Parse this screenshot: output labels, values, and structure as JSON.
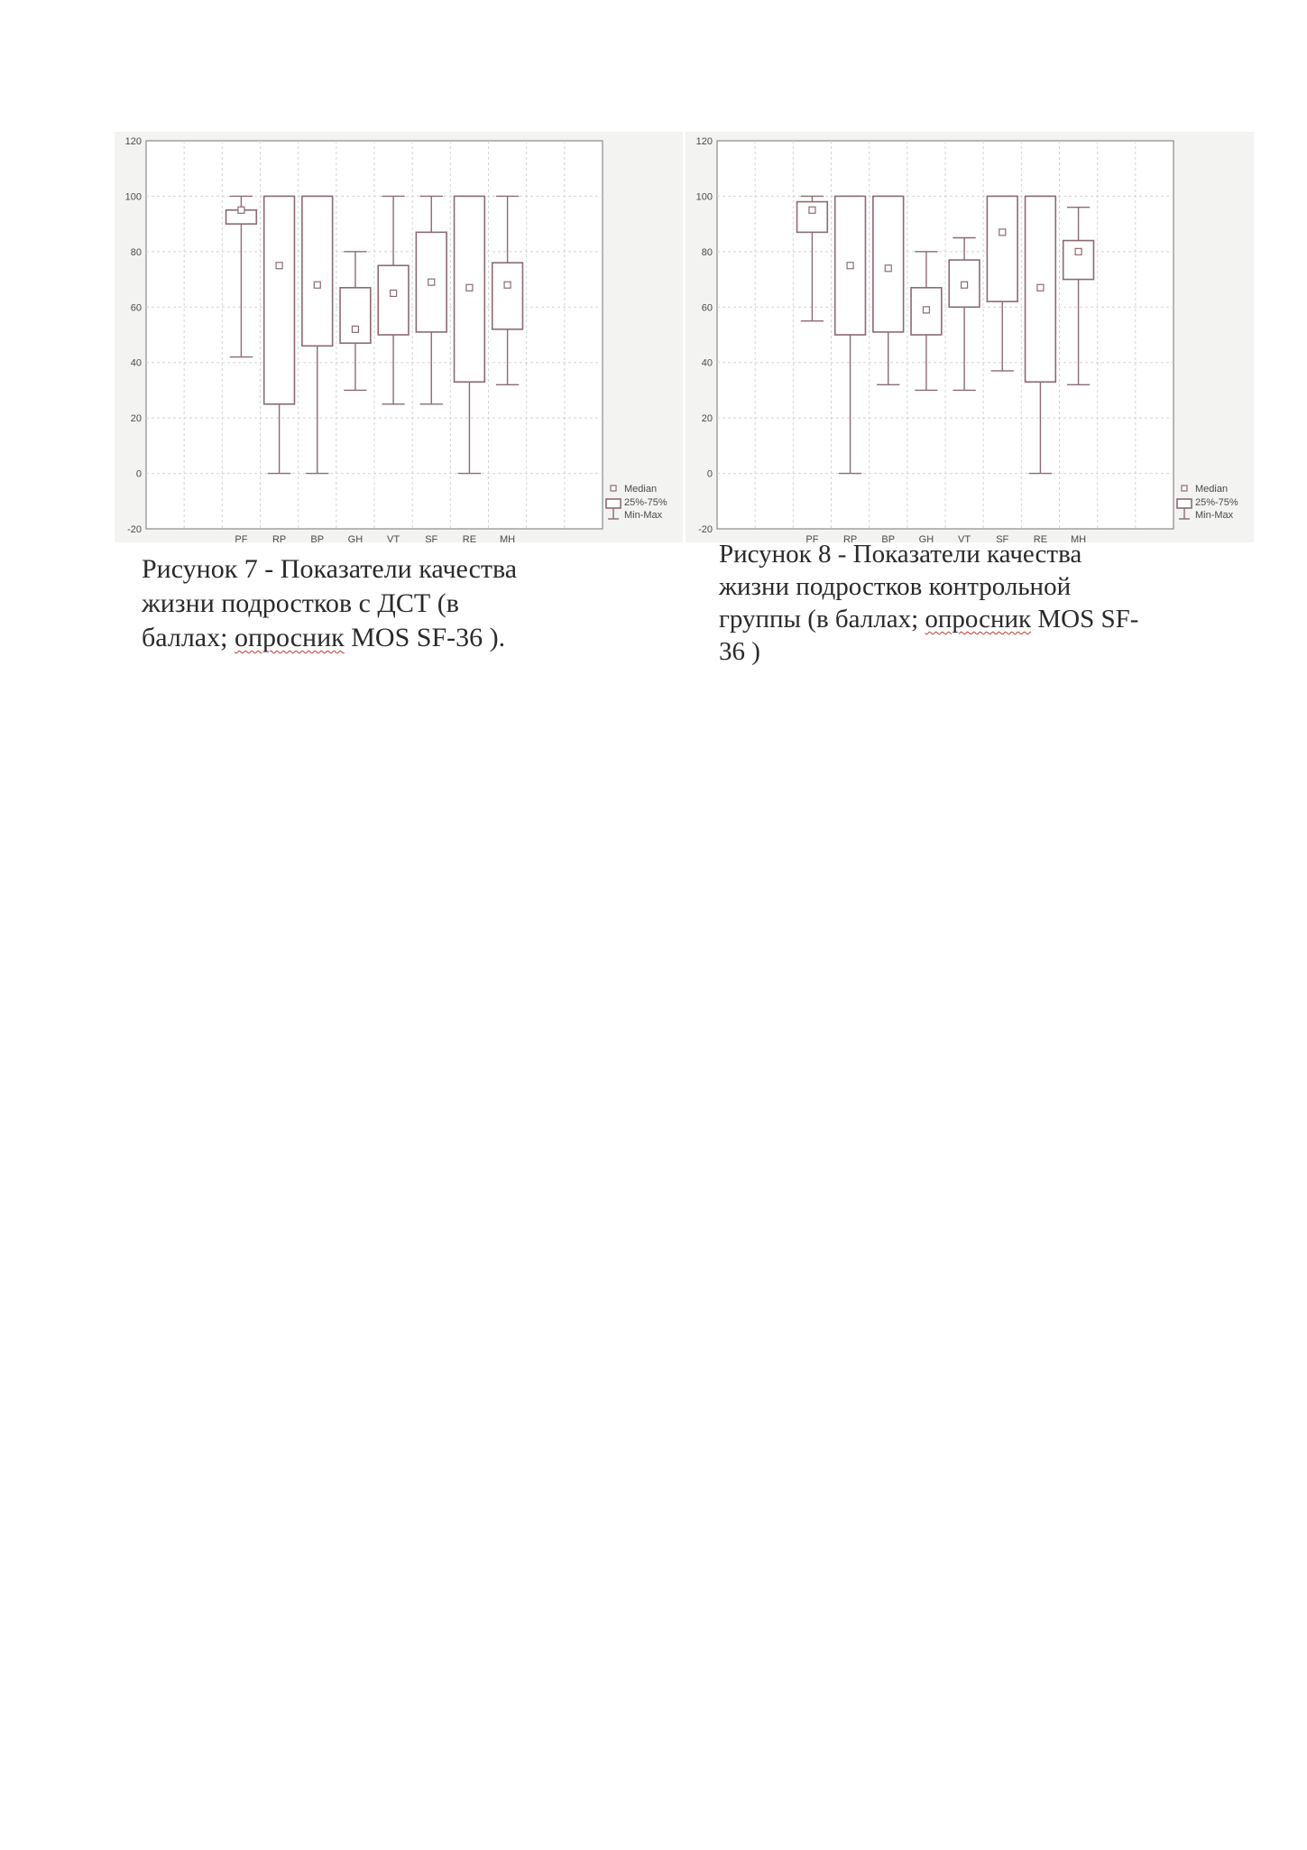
{
  "chart_data": [
    {
      "type": "boxplot",
      "categories": [
        "PF",
        "RP",
        "BP",
        "GH",
        "VT",
        "SF",
        "RE",
        "MH"
      ],
      "ylim": [
        -20,
        120
      ],
      "yticks": [
        "-20",
        "0",
        "20",
        "40",
        "60",
        "80",
        "100",
        "120"
      ],
      "grid": true,
      "legend_position": "bottom-right",
      "legend": [
        "Median",
        "25%-75%",
        "Min-Max"
      ],
      "stats": [
        {
          "min": 42,
          "q1": 90,
          "median": 95,
          "q3": 95,
          "max": 100
        },
        {
          "min": 0,
          "q1": 25,
          "median": 75,
          "q3": 100,
          "max": 100
        },
        {
          "min": 0,
          "q1": 46,
          "median": 68,
          "q3": 100,
          "max": 100
        },
        {
          "min": 30,
          "q1": 47,
          "median": 52,
          "q3": 67,
          "max": 80
        },
        {
          "min": 25,
          "q1": 50,
          "median": 65,
          "q3": 75,
          "max": 100
        },
        {
          "min": 25,
          "q1": 51,
          "median": 69,
          "q3": 87,
          "max": 100
        },
        {
          "min": 0,
          "q1": 33,
          "median": 67,
          "q3": 100,
          "max": 100
        },
        {
          "min": 32,
          "q1": 52,
          "median": 68,
          "q3": 76,
          "max": 100
        }
      ],
      "caption_lines": [
        "Рисунок  7 - Показатели  качества",
        "жизни  подростков  с ДСТ (в",
        "баллах; опросник  MOS SF-36  )."
      ]
    },
    {
      "type": "boxplot",
      "categories": [
        "PF",
        "RP",
        "BP",
        "GH",
        "VT",
        "SF",
        "RE",
        "MH"
      ],
      "ylim": [
        -20,
        120
      ],
      "yticks": [
        "-20",
        "0",
        "20",
        "40",
        "60",
        "80",
        "100",
        "120"
      ],
      "grid": true,
      "legend_position": "bottom-right",
      "legend": [
        "Median",
        "25%-75%",
        "Min-Max"
      ],
      "stats": [
        {
          "min": 55,
          "q1": 87,
          "median": 95,
          "q3": 98,
          "max": 100
        },
        {
          "min": 0,
          "q1": 50,
          "median": 75,
          "q3": 100,
          "max": 100
        },
        {
          "min": 32,
          "q1": 51,
          "median": 74,
          "q3": 100,
          "max": 100
        },
        {
          "min": 30,
          "q1": 50,
          "median": 59,
          "q3": 67,
          "max": 80
        },
        {
          "min": 30,
          "q1": 60,
          "median": 68,
          "q3": 77,
          "max": 85
        },
        {
          "min": 37,
          "q1": 62,
          "median": 87,
          "q3": 100,
          "max": 100
        },
        {
          "min": 0,
          "q1": 33,
          "median": 67,
          "q3": 100,
          "max": 100
        },
        {
          "min": 32,
          "q1": 70,
          "median": 80,
          "q3": 84,
          "max": 96
        }
      ],
      "caption_lines": [
        "Рисунок 8 - Показатели качества",
        "жизни подростков контрольной",
        "группы (в баллах; опросник MOS SF-",
        "36 )"
      ]
    }
  ]
}
